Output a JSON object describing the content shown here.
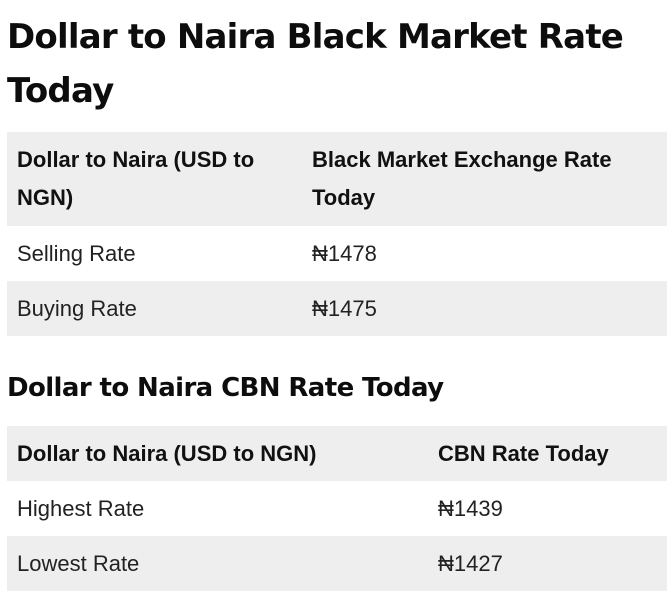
{
  "black_market": {
    "title": "Dollar to Naira Black Market Rate Today",
    "headers": [
      "Dollar to Naira (USD to NGN)",
      "Black Market Exchange Rate Today"
    ],
    "rows": [
      {
        "label": "Selling Rate",
        "value": "₦1478"
      },
      {
        "label": "Buying Rate",
        "value": "₦1475"
      }
    ]
  },
  "cbn": {
    "title": "Dollar to Naira CBN Rate Today",
    "headers": [
      "Dollar to Naira (USD to NGN)",
      "CBN Rate Today"
    ],
    "rows": [
      {
        "label": "Highest Rate",
        "value": "₦1439"
      },
      {
        "label": "Lowest Rate",
        "value": "₦1427"
      }
    ]
  }
}
